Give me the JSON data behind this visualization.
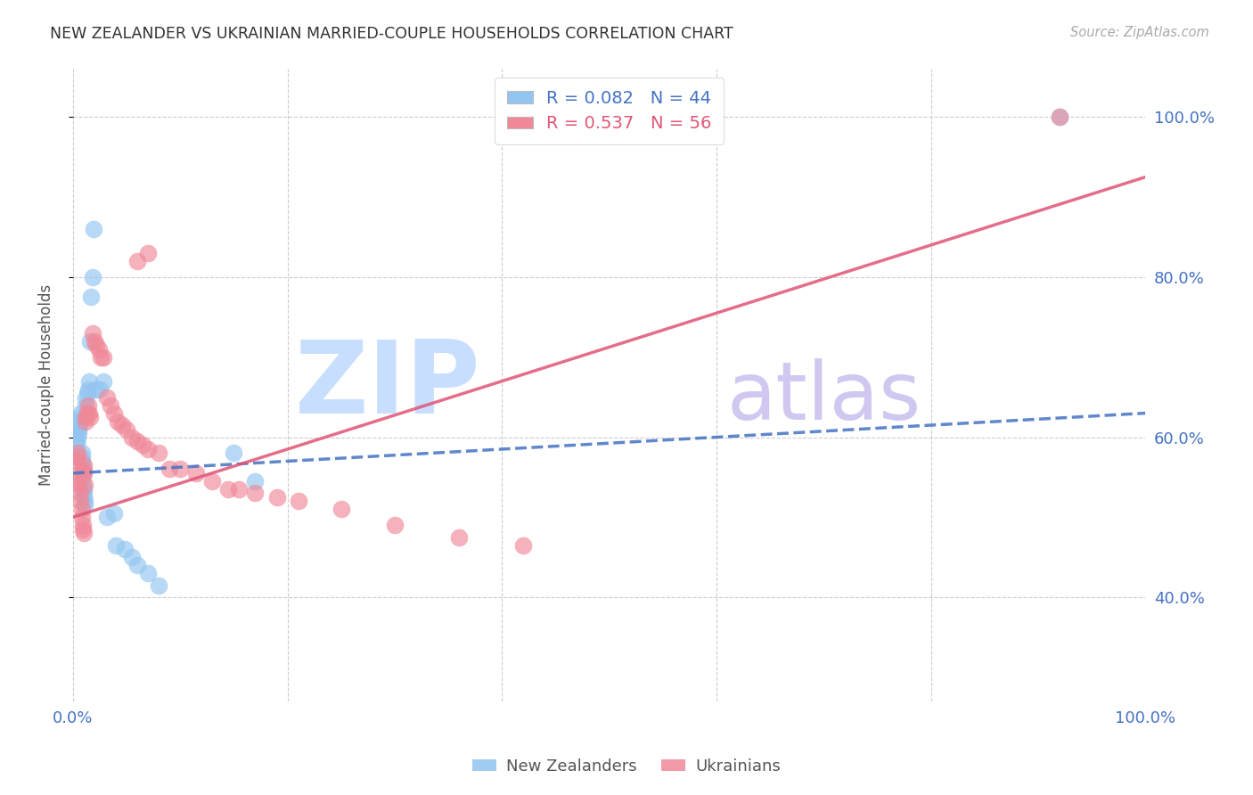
{
  "title": "NEW ZEALANDER VS UKRAINIAN MARRIED-COUPLE HOUSEHOLDS CORRELATION CHART",
  "source": "Source: ZipAtlas.com",
  "ylabel": "Married-couple Households",
  "nz_color": "#92C5F0",
  "uk_color": "#F08898",
  "nz_line_color": "#4472C4",
  "uk_line_color": "#E05575",
  "nz_R": 0.082,
  "nz_N": 44,
  "uk_R": 0.537,
  "uk_N": 56,
  "xlim": [
    0.0,
    1.0
  ],
  "ylim": [
    0.27,
    1.06
  ],
  "yticks": [
    0.4,
    0.6,
    0.8,
    1.0
  ],
  "ytick_labels": [
    "40.0%",
    "60.0%",
    "80.0%",
    "100.0%"
  ],
  "xticks": [
    0.0,
    0.2,
    0.4,
    0.6,
    0.8,
    1.0
  ],
  "xtick_labels": [
    "0.0%",
    "",
    "",
    "",
    "",
    "100.0%"
  ],
  "nz_x": [
    0.003,
    0.003,
    0.004,
    0.005,
    0.005,
    0.006,
    0.006,
    0.007,
    0.007,
    0.008,
    0.008,
    0.008,
    0.009,
    0.009,
    0.009,
    0.009,
    0.01,
    0.01,
    0.01,
    0.011,
    0.011,
    0.012,
    0.012,
    0.013,
    0.014,
    0.015,
    0.016,
    0.017,
    0.018,
    0.019,
    0.022,
    0.025,
    0.028,
    0.032,
    0.038,
    0.04,
    0.048,
    0.055,
    0.06,
    0.07,
    0.08,
    0.15,
    0.17,
    0.92
  ],
  "nz_y": [
    0.59,
    0.595,
    0.6,
    0.605,
    0.61,
    0.615,
    0.62,
    0.625,
    0.63,
    0.58,
    0.575,
    0.57,
    0.565,
    0.558,
    0.55,
    0.54,
    0.535,
    0.53,
    0.525,
    0.52,
    0.515,
    0.64,
    0.648,
    0.655,
    0.66,
    0.67,
    0.72,
    0.775,
    0.8,
    0.86,
    0.66,
    0.66,
    0.67,
    0.5,
    0.505,
    0.465,
    0.46,
    0.45,
    0.44,
    0.43,
    0.415,
    0.58,
    0.545,
    1.0
  ],
  "uk_x": [
    0.003,
    0.004,
    0.004,
    0.005,
    0.005,
    0.006,
    0.007,
    0.007,
    0.008,
    0.008,
    0.009,
    0.009,
    0.01,
    0.01,
    0.01,
    0.01,
    0.011,
    0.012,
    0.012,
    0.013,
    0.014,
    0.015,
    0.016,
    0.018,
    0.02,
    0.022,
    0.024,
    0.026,
    0.028,
    0.032,
    0.035,
    0.038,
    0.042,
    0.046,
    0.05,
    0.055,
    0.06,
    0.065,
    0.07,
    0.08,
    0.09,
    0.1,
    0.115,
    0.13,
    0.145,
    0.155,
    0.17,
    0.19,
    0.21,
    0.25,
    0.3,
    0.36,
    0.42,
    0.06,
    0.07,
    0.92
  ],
  "uk_y": [
    0.57,
    0.575,
    0.58,
    0.54,
    0.545,
    0.555,
    0.52,
    0.53,
    0.51,
    0.5,
    0.49,
    0.485,
    0.48,
    0.555,
    0.565,
    0.558,
    0.54,
    0.62,
    0.625,
    0.63,
    0.64,
    0.63,
    0.625,
    0.73,
    0.72,
    0.715,
    0.71,
    0.7,
    0.7,
    0.65,
    0.64,
    0.63,
    0.62,
    0.615,
    0.61,
    0.6,
    0.595,
    0.59,
    0.585,
    0.58,
    0.56,
    0.56,
    0.555,
    0.545,
    0.535,
    0.535,
    0.53,
    0.525,
    0.52,
    0.51,
    0.49,
    0.475,
    0.465,
    0.82,
    0.83,
    1.0
  ],
  "watermark_zip_color": "#C8DEFF",
  "watermark_atlas_color": "#D0C8F0",
  "tick_color": "#4472C4",
  "grid_color": "#CCCCCC",
  "title_color": "#333333",
  "source_color": "#AAAAAA"
}
